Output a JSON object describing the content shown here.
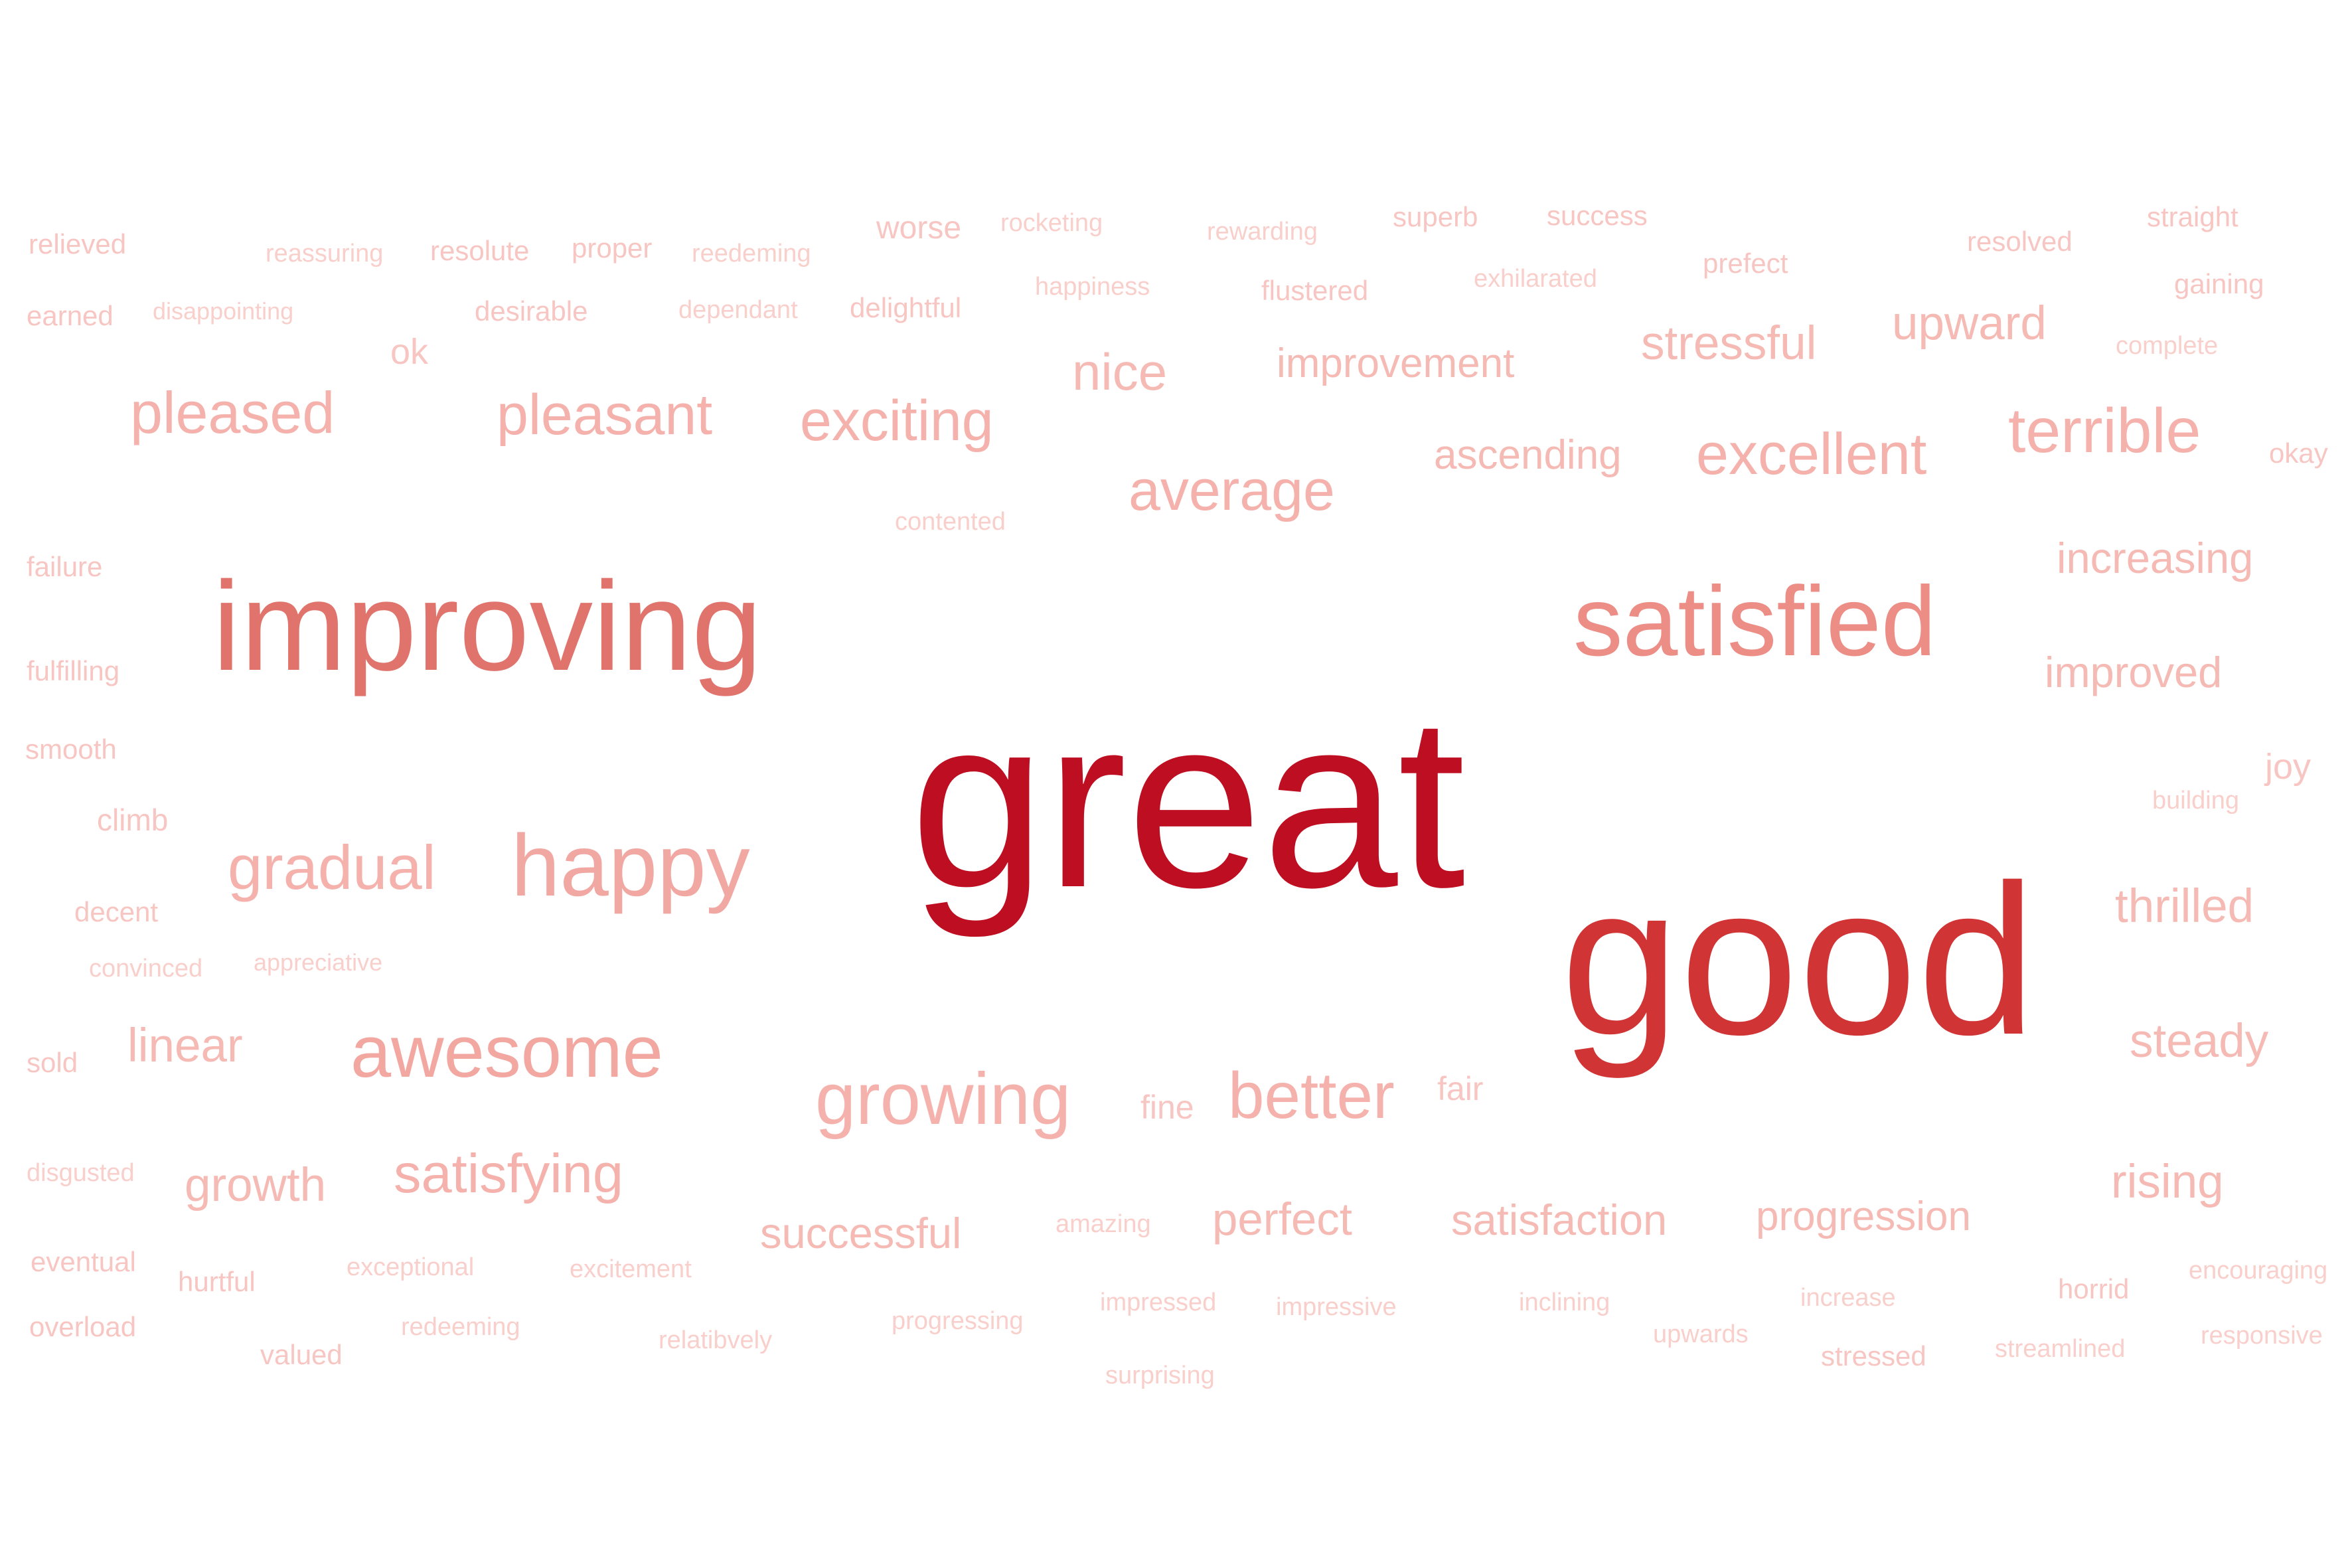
{
  "cloud": {
    "words": [
      {
        "text": "great",
        "color": "#BE0F22"
      },
      {
        "text": "good",
        "color": "#D03435"
      },
      {
        "text": "improving",
        "color": "#E0746D"
      },
      {
        "text": "satisfied",
        "color": "#EC8D86"
      },
      {
        "text": "happy",
        "color": "#F2A8A2"
      },
      {
        "text": "awesome",
        "color": "#F2A7A1"
      },
      {
        "text": "growing",
        "color": "#F5B2AC"
      },
      {
        "text": "better",
        "color": "#F5B2AC"
      },
      {
        "text": "gradual",
        "color": "#F5B2AC"
      },
      {
        "text": "pleased",
        "color": "#F5B2AC"
      },
      {
        "text": "pleasant",
        "color": "#F5B2AC"
      },
      {
        "text": "exciting",
        "color": "#F5B2AC"
      },
      {
        "text": "terrible",
        "color": "#F5B2AC"
      },
      {
        "text": "excellent",
        "color": "#F5B2AC"
      },
      {
        "text": "average",
        "color": "#F5B2AC"
      },
      {
        "text": "satisfying",
        "color": "#F5B2AC"
      },
      {
        "text": "nice",
        "color": "#F6BAB5"
      },
      {
        "text": "stressful",
        "color": "#F6BAB5"
      },
      {
        "text": "upward",
        "color": "#F6BAB5"
      },
      {
        "text": "improvement",
        "color": "#F6BAB5"
      },
      {
        "text": "ascending",
        "color": "#F6BAB5"
      },
      {
        "text": "increasing",
        "color": "#F6BAB5"
      },
      {
        "text": "improved",
        "color": "#F6BAB5"
      },
      {
        "text": "thrilled",
        "color": "#F6BAB5"
      },
      {
        "text": "steady",
        "color": "#F6BAB5"
      },
      {
        "text": "rising",
        "color": "#F6BAB5"
      },
      {
        "text": "linear",
        "color": "#F6BAB5"
      },
      {
        "text": "growth",
        "color": "#F6BAB5"
      },
      {
        "text": "successful",
        "color": "#F6BAB5"
      },
      {
        "text": "perfect",
        "color": "#F6BAB5"
      },
      {
        "text": "satisfaction",
        "color": "#F6BAB5"
      },
      {
        "text": "progression",
        "color": "#F6BAB5"
      },
      {
        "text": "worse",
        "color": "#F8C6C2"
      },
      {
        "text": "ok",
        "color": "#F8C6C2"
      },
      {
        "text": "joy",
        "color": "#F8C6C2"
      },
      {
        "text": "fine",
        "color": "#F8C6C2"
      },
      {
        "text": "fair",
        "color": "#F8C6C2"
      },
      {
        "text": "relieved",
        "color": "#F8C6C2"
      },
      {
        "text": "earned",
        "color": "#F8C6C2"
      },
      {
        "text": "resolute",
        "color": "#F8C6C2"
      },
      {
        "text": "proper",
        "color": "#F8C6C2"
      },
      {
        "text": "desirable",
        "color": "#F8C6C2"
      },
      {
        "text": "delightful",
        "color": "#F8C6C2"
      },
      {
        "text": "flustered",
        "color": "#F8C6C2"
      },
      {
        "text": "superb",
        "color": "#F8C6C2"
      },
      {
        "text": "success",
        "color": "#F8C6C2"
      },
      {
        "text": "prefect",
        "color": "#F8C6C2"
      },
      {
        "text": "resolved",
        "color": "#F8C6C2"
      },
      {
        "text": "straight",
        "color": "#F8C6C2"
      },
      {
        "text": "gaining",
        "color": "#F8C6C2"
      },
      {
        "text": "okay",
        "color": "#F8C6C2"
      },
      {
        "text": "failure",
        "color": "#F8C6C2"
      },
      {
        "text": "fulfilling",
        "color": "#F8C6C2"
      },
      {
        "text": "smooth",
        "color": "#F8C6C2"
      },
      {
        "text": "climb",
        "color": "#F8C6C2"
      },
      {
        "text": "decent",
        "color": "#F8C6C2"
      },
      {
        "text": "sold",
        "color": "#F8C6C2"
      },
      {
        "text": "hurtful",
        "color": "#F8C6C2"
      },
      {
        "text": "valued",
        "color": "#F8C6C2"
      },
      {
        "text": "eventual",
        "color": "#F8C6C2"
      },
      {
        "text": "overload",
        "color": "#F8C6C2"
      },
      {
        "text": "horrid",
        "color": "#F8C6C2"
      },
      {
        "text": "stressed",
        "color": "#F8C6C2"
      },
      {
        "text": "reassuring",
        "color": "#F9CFCB"
      },
      {
        "text": "reedeming",
        "color": "#F9CFCB"
      },
      {
        "text": "rocketing",
        "color": "#F9CFCB"
      },
      {
        "text": "rewarding",
        "color": "#F9CFCB"
      },
      {
        "text": "disappointing",
        "color": "#F9CFCB"
      },
      {
        "text": "dependant",
        "color": "#F9CFCB"
      },
      {
        "text": "happiness",
        "color": "#F9CFCB"
      },
      {
        "text": "exhilarated",
        "color": "#F9CFCB"
      },
      {
        "text": "complete",
        "color": "#F9CFCB"
      },
      {
        "text": "contented",
        "color": "#F9CFCB"
      },
      {
        "text": "building",
        "color": "#F9CFCB"
      },
      {
        "text": "convinced",
        "color": "#F9CFCB"
      },
      {
        "text": "appreciative",
        "color": "#F9CFCB"
      },
      {
        "text": "disgusted",
        "color": "#F9CFCB"
      },
      {
        "text": "amazing",
        "color": "#F9CFCB"
      },
      {
        "text": "exceptional",
        "color": "#F9CFCB"
      },
      {
        "text": "excitement",
        "color": "#F9CFCB"
      },
      {
        "text": "redeeming",
        "color": "#F9CFCB"
      },
      {
        "text": "relatibvely",
        "color": "#F9CFCB"
      },
      {
        "text": "progressing",
        "color": "#F9CFCB"
      },
      {
        "text": "impressed",
        "color": "#F9CFCB"
      },
      {
        "text": "impressive",
        "color": "#F9CFCB"
      },
      {
        "text": "surprising",
        "color": "#F9CFCB"
      },
      {
        "text": "inclining",
        "color": "#F9CFCB"
      },
      {
        "text": "upwards",
        "color": "#F9CFCB"
      },
      {
        "text": "increase",
        "color": "#F9CFCB"
      },
      {
        "text": "streamlined",
        "color": "#F9CFCB"
      },
      {
        "text": "encouraging",
        "color": "#F9CFCB"
      },
      {
        "text": "responsive",
        "color": "#F9CFCB"
      }
    ]
  }
}
